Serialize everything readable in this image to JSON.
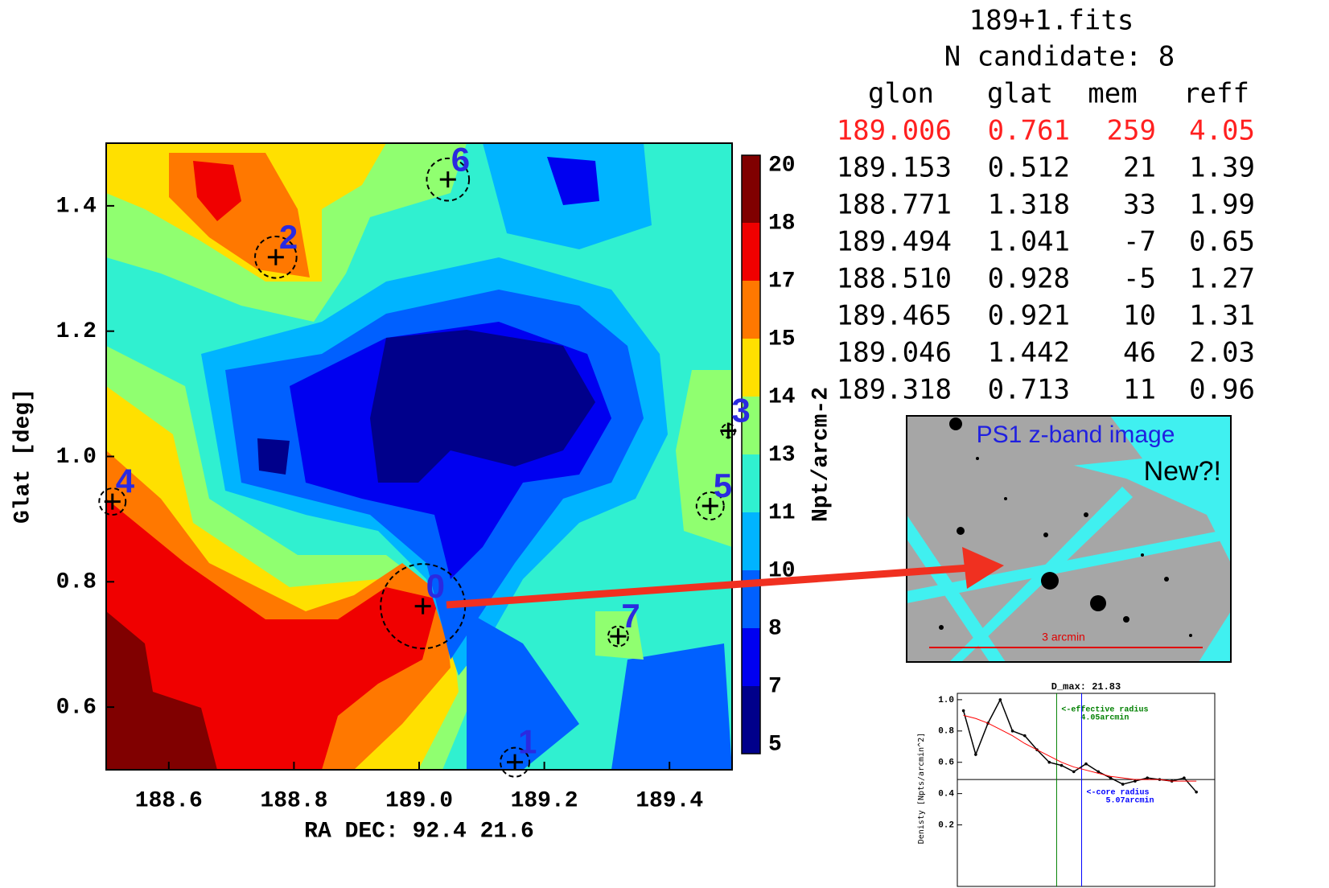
{
  "chart_data": [
    {
      "type": "density-map",
      "x_label": "RA DEC: 92.4 21.6",
      "y_label": "Glat [deg]",
      "xlim": [
        188.5,
        189.5
      ],
      "ylim": [
        0.5,
        1.5
      ],
      "xticks": [
        188.6,
        188.8,
        {
          "value": 189,
          "label": "189.0"
        },
        189.2,
        189.4
      ],
      "yticks": [
        0.6,
        0.8,
        {
          "value": 1,
          "label": "1.0"
        },
        1.2,
        1.4
      ],
      "colorbar": {
        "label": "Npt/arcm-2",
        "levels": [
          5,
          7,
          8,
          10,
          11,
          13,
          14,
          15,
          17,
          18,
          20
        ],
        "colors": [
          "#00008b",
          "#0000f0",
          "#0060ff",
          "#00b4ff",
          "#30f0d0",
          "#90ff70",
          "#ffe000",
          "#ff7800",
          "#f00000",
          "#800000"
        ]
      },
      "candidates": {
        "labels": [
          "0",
          "1",
          "2",
          "3",
          "4",
          "5",
          "6",
          "7"
        ],
        "x": [
          189.006,
          189.153,
          188.771,
          189.494,
          188.51,
          189.465,
          189.046,
          189.318
        ],
        "y": [
          0.761,
          0.512,
          1.318,
          1.041,
          0.928,
          0.921,
          1.442,
          0.713
        ],
        "size": [
          4.05,
          1.39,
          1.99,
          0.65,
          1.27,
          1.31,
          2.03,
          0.96
        ],
        "label_color": "#2a2ae0"
      }
    },
    {
      "type": "line",
      "title": "D_max: 21.83",
      "y_label": "Denisty [Npts/arcmin^2]",
      "xlim": [
        0,
        10.5
      ],
      "ylim": [
        0.1,
        1.02
      ],
      "yticks": [
        0.2,
        0.4,
        0.6,
        0.8,
        {
          "value": 1,
          "label": "1.0"
        }
      ],
      "x": [
        0.25,
        0.75,
        1.25,
        1.75,
        2.25,
        2.75,
        3.25,
        3.75,
        4.25,
        4.75,
        5.25,
        5.75,
        6.25,
        6.75,
        7.25,
        7.75,
        8.25,
        8.75,
        9.25,
        9.75
      ],
      "series": [
        {
          "color": "#000000",
          "values": [
            0.93,
            0.65,
            0.85,
            1.0,
            0.8,
            0.77,
            0.68,
            0.6,
            0.58,
            0.54,
            0.59,
            0.54,
            0.5,
            0.46,
            0.48,
            0.5,
            0.49,
            0.48,
            0.5,
            0.41
          ]
        },
        {
          "color": "#ff0000",
          "values": [
            0.9,
            0.88,
            0.85,
            0.81,
            0.77,
            0.72,
            0.68,
            0.64,
            0.6,
            0.57,
            0.55,
            0.53,
            0.51,
            0.5,
            0.49,
            0.49,
            0.49,
            0.48,
            0.48,
            0.48
          ]
        }
      ],
      "background": 0.49,
      "vlines": [
        {
          "value": 4.05,
          "color": "#008000",
          "label": [
            "<-effective radius",
            "4.05arcmin"
          ]
        },
        {
          "value": 5.07,
          "color": "#0000ff",
          "label": [
            "<-core radius",
            "5.07arcmin"
          ]
        }
      ]
    }
  ],
  "table": {
    "file": "189+1.fits",
    "count": "N candidate: 8",
    "columns": [
      "glon",
      "glat",
      "mem",
      "reff"
    ],
    "rows": [
      [
        "189.006",
        "0.761",
        "259",
        "4.05"
      ],
      [
        "189.153",
        "0.512",
        "21",
        "1.39"
      ],
      [
        "188.771",
        "1.318",
        "33",
        "1.99"
      ],
      [
        "189.494",
        "1.041",
        "-7",
        "0.65"
      ],
      [
        "188.510",
        "0.928",
        "-5",
        "1.27"
      ],
      [
        "189.465",
        "0.921",
        "10",
        "1.31"
      ],
      [
        "189.046",
        "1.442",
        "46",
        "2.03"
      ],
      [
        "189.318",
        "0.713",
        "11",
        "0.96"
      ]
    ],
    "highlight_color": "#ff2020"
  },
  "ps1_image": {
    "title": "PS1 z-band image",
    "note": "New?!",
    "scale_label": "3 arcmin"
  }
}
